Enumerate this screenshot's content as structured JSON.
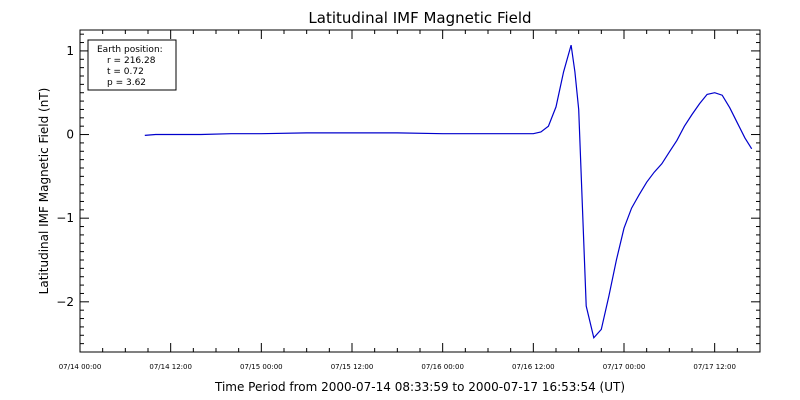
{
  "chart_data": {
    "type": "line",
    "title": "Latitudinal IMF Magnetic Field",
    "xlabel": "Time Period from 2000-07-14 08:33:59 to 2000-07-17 16:53:54 (UT)",
    "ylabel": "Latitudinal IMF Magnetic Field (nT)",
    "x_tick_labels": [
      "07/14 00:00",
      "07/14 12:00",
      "07/15 00:00",
      "07/15 12:00",
      "07/16 00:00",
      "07/16 12:00",
      "07/17 00:00",
      "07/17 12:00"
    ],
    "x_tick_hours": [
      0,
      12,
      24,
      36,
      48,
      60,
      72,
      84
    ],
    "xlim_hours": [
      0,
      90
    ],
    "ylim": [
      -2.6,
      1.25
    ],
    "y_ticks": [
      -2,
      -1,
      0,
      1
    ],
    "y_tick_labels": [
      "−2",
      "−1",
      "0",
      "1"
    ],
    "series": [
      {
        "color": "#0000cc",
        "x_hours": [
          8.57,
          10,
          12,
          16,
          20,
          24,
          30,
          36,
          42,
          48,
          54,
          60,
          61,
          62,
          63,
          64,
          65,
          65.5,
          66,
          67,
          68,
          69,
          70,
          71,
          72,
          73,
          74,
          75,
          76,
          77,
          78,
          79,
          80,
          81,
          82,
          83,
          84,
          85,
          86,
          87,
          88,
          88.9
        ],
        "y": [
          -0.01,
          0.0,
          0.0,
          0.0,
          0.01,
          0.01,
          0.02,
          0.02,
          0.02,
          0.01,
          0.01,
          0.01,
          0.03,
          0.1,
          0.33,
          0.75,
          1.07,
          0.75,
          0.3,
          -2.05,
          -2.43,
          -2.33,
          -1.93,
          -1.5,
          -1.12,
          -0.88,
          -0.72,
          -0.57,
          -0.45,
          -0.35,
          -0.21,
          -0.07,
          0.1,
          0.24,
          0.37,
          0.48,
          0.5,
          0.47,
          0.32,
          0.14,
          -0.04,
          -0.17
        ]
      }
    ],
    "legend_placement": "top-left",
    "legend_lines": [
      "Earth position:",
      "r = 216.28",
      "t = 0.72",
      "p = 3.62"
    ],
    "grid": false
  }
}
